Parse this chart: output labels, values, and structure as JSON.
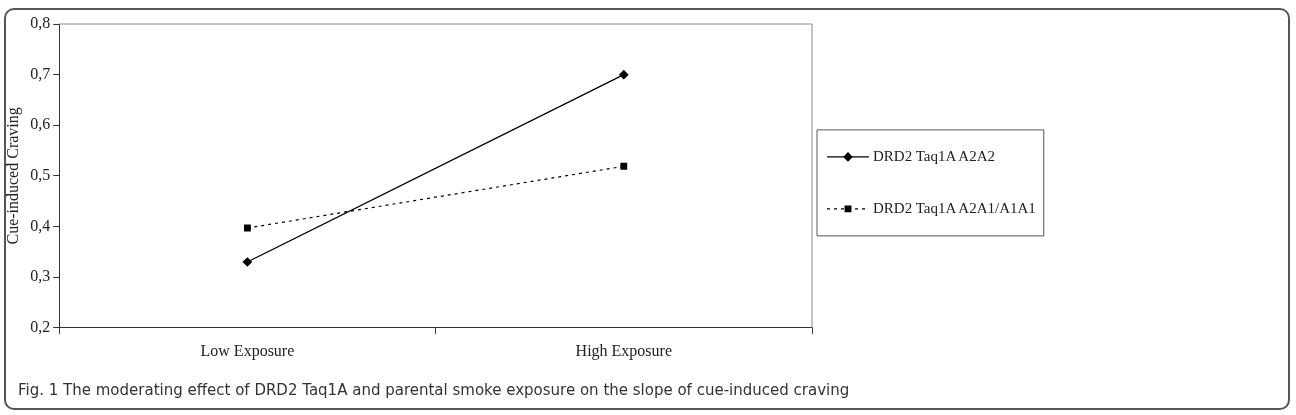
{
  "chart_data": {
    "type": "line",
    "ylabel": "Cue-induced Craving",
    "categories": [
      "Low Exposure",
      "High Exposure"
    ],
    "series": [
      {
        "name": "DRD2 Taq1A A2A2",
        "color": "#000000",
        "values": [
          0.33,
          0.7
        ],
        "marker": "diamond",
        "line_style": "solid"
      },
      {
        "name": "DRD2 Taq1A A2A1/A1A1",
        "color": "#000000",
        "values": [
          0.397,
          0.519
        ],
        "marker": "square",
        "line_style": "dotted"
      }
    ],
    "ylim": [
      0.2,
      0.8
    ],
    "yticks": [
      {
        "value": 0.2,
        "label": "0,2"
      },
      {
        "value": 0.3,
        "label": "0,3"
      },
      {
        "value": 0.4,
        "label": "0,4"
      },
      {
        "value": 0.5,
        "label": "0,5"
      },
      {
        "value": 0.6,
        "label": "0,6"
      },
      {
        "value": 0.7,
        "label": "0,7"
      },
      {
        "value": 0.8,
        "label": "0,8"
      }
    ],
    "grid": false,
    "legend": "right",
    "annotations": [
      "Fig. 1 The moderating effect of DRD2 Taq1A and parental smoke exposure on the slope of cue-induced craving"
    ]
  }
}
